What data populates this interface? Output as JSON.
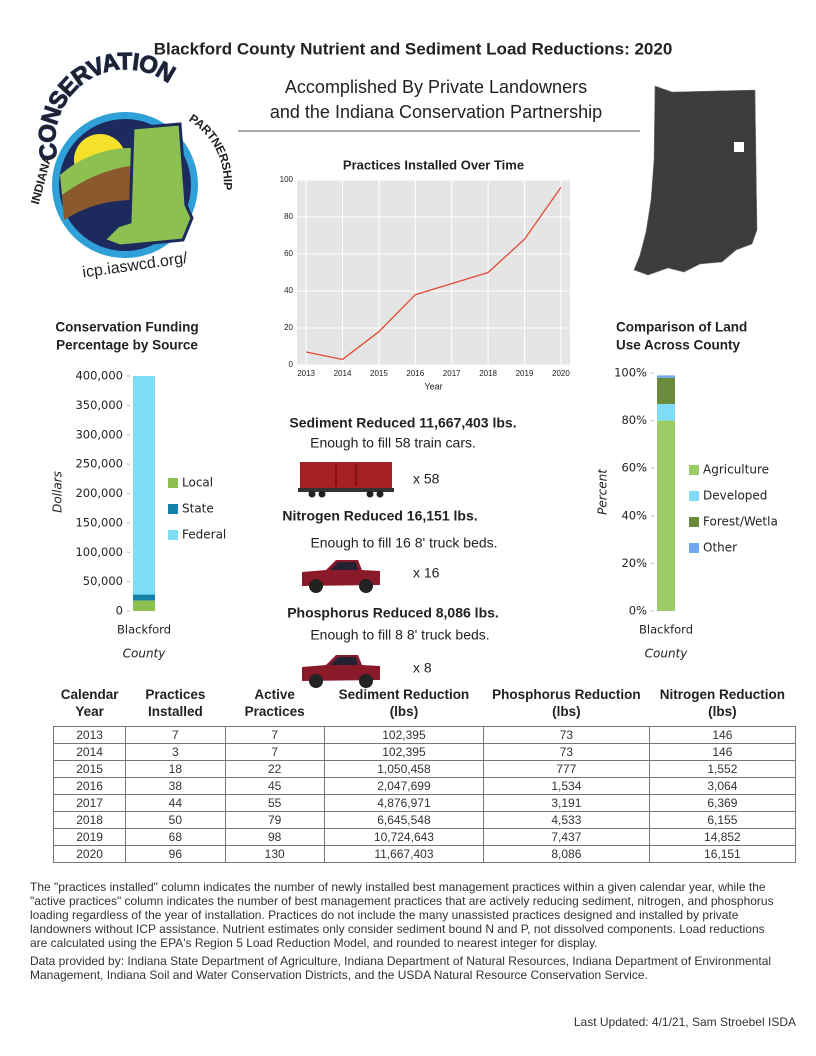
{
  "header": {
    "title": "Blackford County Nutrient and Sediment Load Reductions: 2020",
    "subtitle": [
      "Accomplished By Private Landowners",
      "and the Indiana Conservation Partnership"
    ]
  },
  "logo": {
    "left": "INDIANA",
    "top": "CONSERVATION",
    "right": "PARTNERSHIP",
    "url": "icp.iaswcd.org/"
  },
  "chart_data": [
    {
      "type": "line",
      "title": "Practices Installed Over Time",
      "x_label": "Year",
      "x": [
        2013,
        2014,
        2015,
        2016,
        2017,
        2018,
        2019,
        2020
      ],
      "values": [
        7,
        3,
        18,
        38,
        44,
        50,
        68,
        96
      ],
      "color": "#e24a33",
      "xlim": [
        2012.75,
        2020.25
      ],
      "xticks": [
        2013,
        2014,
        2015,
        2016,
        2017,
        2018,
        2019,
        2020
      ],
      "ylim": [
        0,
        100
      ],
      "yticks": [
        0,
        20,
        40,
        60,
        80,
        100
      ],
      "grid": true
    },
    {
      "type": "stacked_bar",
      "title": [
        "Conservation Funding",
        "Percentage by Source"
      ],
      "y_label": "Dollars",
      "x_label": "County",
      "categories": [
        "Blackford"
      ],
      "series": [
        {
          "name": "Local",
          "color": "#8cc152",
          "values": [
            18000
          ]
        },
        {
          "name": "State",
          "color": "#1580a8",
          "values": [
            10000
          ]
        },
        {
          "name": "Federal",
          "color": "#7fdcf5",
          "values": [
            372000
          ]
        }
      ],
      "ylim": [
        0,
        400000
      ],
      "yticks": [
        0,
        {
          "value": 50000,
          "label": "50,000"
        },
        {
          "value": 100000,
          "label": "100,000"
        },
        {
          "value": 150000,
          "label": "150,000"
        },
        {
          "value": 200000,
          "label": "200,000"
        },
        {
          "value": 250000,
          "label": "250,000"
        },
        {
          "value": 300000,
          "label": "300,000"
        },
        {
          "value": 350000,
          "label": "350,000"
        },
        {
          "value": 400000,
          "label": "400,000"
        }
      ]
    },
    {
      "type": "stacked_bar",
      "title": [
        "Comparison of Land",
        "Use Across County"
      ],
      "y_label": "Percent",
      "x_label": "County",
      "categories": [
        "Blackford"
      ],
      "series": [
        {
          "name": "Agriculture",
          "color": "#9ccc65",
          "values": [
            80
          ]
        },
        {
          "name": "Developed",
          "color": "#7fdcf5",
          "values": [
            7
          ]
        },
        {
          "name": "Forest/Wetla",
          "color": "#6a8a3c",
          "values": [
            11
          ]
        },
        {
          "name": "Other",
          "color": "#6fa8f0",
          "values": [
            1
          ]
        }
      ],
      "ylim": [
        0,
        100
      ],
      "yticks": [
        {
          "value": 0,
          "label": "0%"
        },
        {
          "value": 20,
          "label": "20%"
        },
        {
          "value": 40,
          "label": "40%"
        },
        {
          "value": 60,
          "label": "60%"
        },
        {
          "value": 80,
          "label": "80%"
        },
        {
          "value": 100,
          "label": "100%"
        }
      ]
    }
  ],
  "callouts": [
    {
      "heading": "Sediment Reduced 11,667,403 lbs.",
      "text": "Enough to fill 58 train cars.",
      "count": "x 58"
    },
    {
      "heading": "Nitrogen Reduced 16,151  lbs.",
      "text": "Enough to fill 16 8' truck beds.",
      "count": "x 16"
    },
    {
      "heading": "Phosphorus Reduced 8,086  lbs.",
      "text": "Enough to fill 8  8' truck beds.",
      "count": "x 8"
    }
  ],
  "table": {
    "headers": [
      "Calendar Year",
      "Practices Installed",
      "Active Practices",
      "Sediment Reduction (lbs)",
      "Phosphorus Reduction (lbs)",
      "Nitrogen Reduction (lbs)"
    ],
    "rows": [
      [
        "2013",
        "7",
        "7",
        "102,395",
        "73",
        "146"
      ],
      [
        "2014",
        "3",
        "7",
        "102,395",
        "73",
        "146"
      ],
      [
        "2015",
        "18",
        "22",
        "1,050,458",
        "777",
        "1,552"
      ],
      [
        "2016",
        "38",
        "45",
        "2,047,699",
        "1,534",
        "3,064"
      ],
      [
        "2017",
        "44",
        "55",
        "4,876,971",
        "3,191",
        "6,369"
      ],
      [
        "2018",
        "50",
        "79",
        "6,645,548",
        "4,533",
        "6,155"
      ],
      [
        "2019",
        "68",
        "98",
        "10,724,643",
        "7,437",
        "14,852"
      ],
      [
        "2020",
        "96",
        "130",
        "11,667,403",
        "8,086",
        "16,151"
      ]
    ]
  },
  "notes": [
    "The \"practices installed\" column indicates the number of newly installed best management practices within a given calendar year, while the \"active practices\" column indicates the number of best management practices that are actively reducing sediment, nitrogen, and phosphorus loading regardless of the year of installation.  Practices do not include the many unassisted practices designed and installed by private landowners without ICP assistance. Nutrient estimates only consider sediment bound N and P, not dissolved components. Load reductions are calculated using the EPA's Region 5 Load Reduction Model, and rounded to nearest integer for display.",
    "Data provided by: Indiana State Department of Agriculture, Indiana Department of Natural Resources, Indiana Department of Environmental Management, Indiana Soil and Water Conservation Districts, and the USDA Natural Resource Conservation Service."
  ],
  "footer": "Last Updated: 4/1/21, Sam Stroebel ISDA"
}
